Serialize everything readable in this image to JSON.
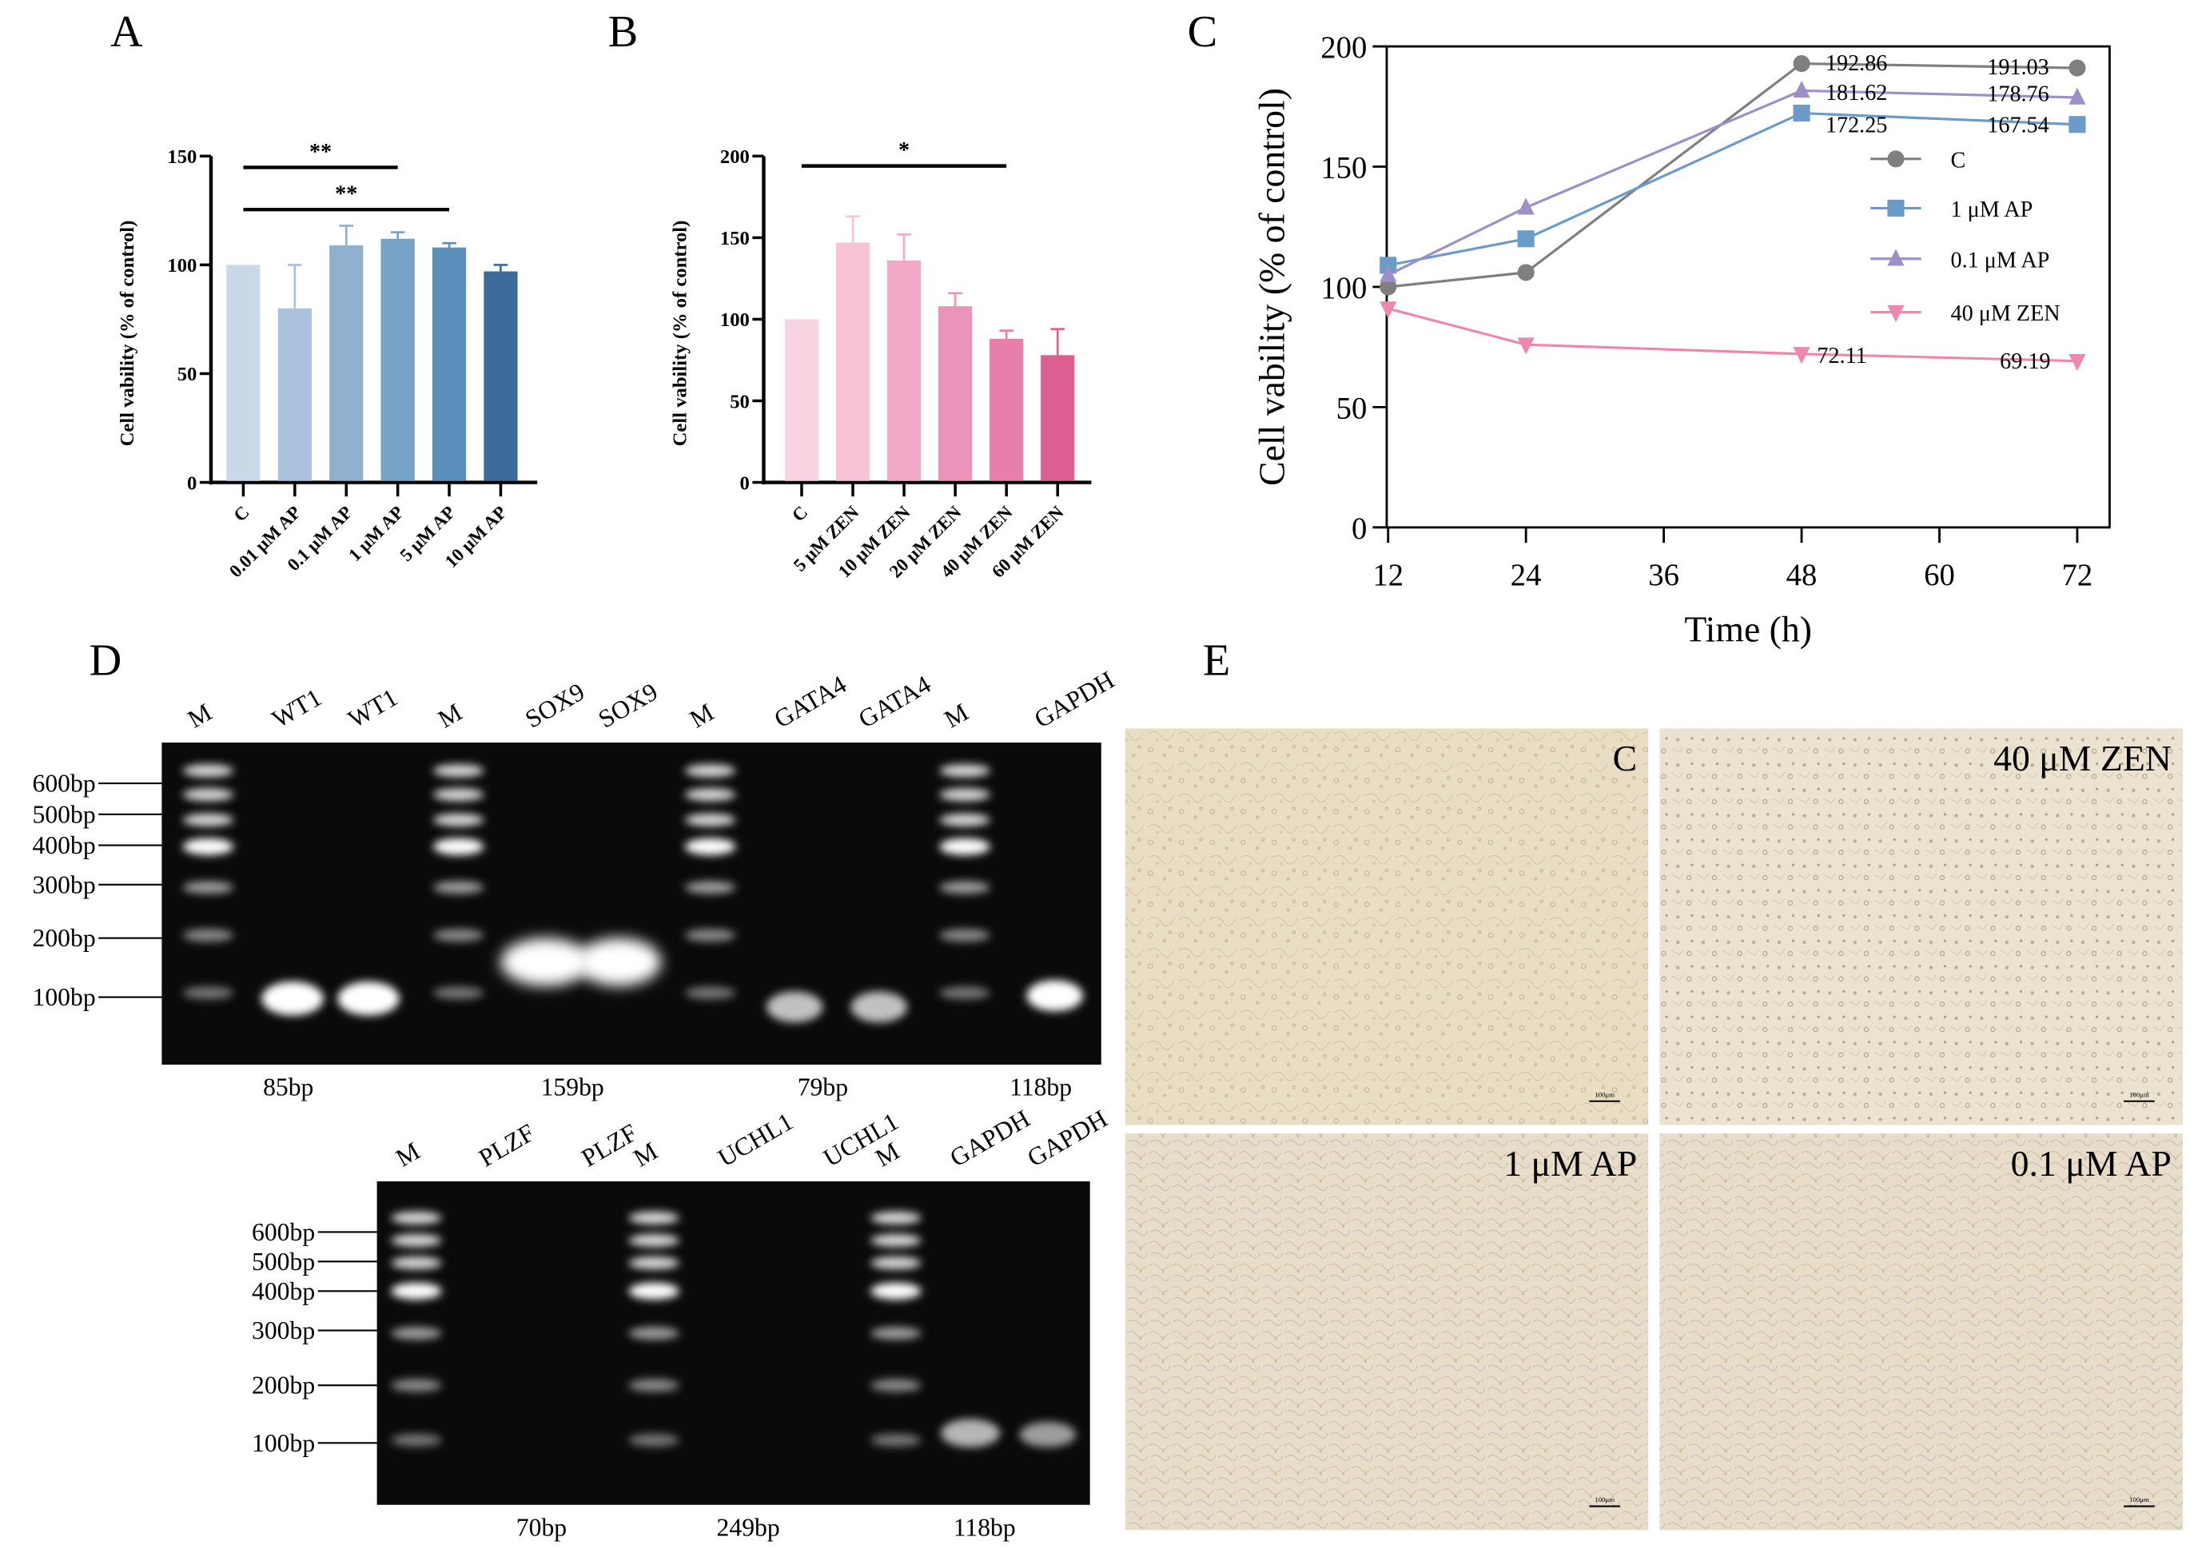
{
  "panel_labels": [
    "A",
    "B",
    "C",
    "D",
    "E"
  ],
  "chart_data": [
    {
      "type": "bar",
      "panel": "A",
      "categories": [
        "C",
        "0.01 μM AP",
        "0.1 μM AP",
        "1 μM AP",
        "5 μM AP",
        "10 μM AP"
      ],
      "values": [
        100,
        80,
        109,
        112,
        108,
        97
      ],
      "error_upper": [
        100,
        100,
        118,
        115,
        110,
        100
      ],
      "ylabel": "Cell vability (% of control)",
      "xlabel": "",
      "ylim": [
        0,
        150
      ],
      "yticks": [
        "0",
        "50",
        "100",
        "150"
      ],
      "colors": [
        "#c9d9e8",
        "#a9c1dc",
        "#8fb0cf",
        "#76a2c6",
        "#5b8fbb",
        "#3c6a9a"
      ],
      "significance": [
        {
          "from": 0,
          "to": 3,
          "label": "**"
        },
        {
          "from": 0,
          "to": 4,
          "label": "**"
        }
      ]
    },
    {
      "type": "bar",
      "panel": "B",
      "categories": [
        "C",
        "5 μM ZEN",
        "10 μM ZEN",
        "20 μM ZEN",
        "40 μM ZEN",
        "60 μM ZEN"
      ],
      "values": [
        100,
        147,
        136,
        108,
        88,
        78
      ],
      "error_upper": [
        100,
        163,
        152,
        116,
        93,
        94
      ],
      "ylabel": "Cell vability (% of control)",
      "xlabel": "",
      "ylim": [
        0,
        200
      ],
      "yticks": [
        "0",
        "50",
        "100",
        "150",
        "200"
      ],
      "colors": [
        "#f8d3e1",
        "#f6c3d7",
        "#f0a9c6",
        "#eb93b9",
        "#e87eaa",
        "#dc5f92"
      ],
      "significance": [
        {
          "from": 0,
          "to": 4,
          "label": "*"
        }
      ]
    },
    {
      "type": "line",
      "panel": "C",
      "x": [
        12,
        24,
        48,
        72
      ],
      "series": [
        {
          "name": "C",
          "values": [
            100,
            106,
            192.86,
            191.03
          ],
          "color": "#7f7f7f",
          "marker": "circle"
        },
        {
          "name": "1 μM AP",
          "values": [
            109,
            120,
            172.25,
            167.54
          ],
          "color": "#6a9bc9",
          "marker": "square"
        },
        {
          "name": "0.1 μM AP",
          "values": [
            105,
            133,
            181.62,
            178.76
          ],
          "color": "#9e8fc9",
          "marker": "triangle-up"
        },
        {
          "name": "40 μM ZEN",
          "values": [
            91,
            76,
            72.11,
            69.19
          ],
          "color": "#ee86ad",
          "marker": "triangle-down"
        }
      ],
      "point_labels": [
        "192.86",
        "191.03",
        "181.62",
        "178.76",
        "172.25",
        "167.54",
        "72.11",
        "69.19"
      ],
      "xlabel": "Time (h)",
      "ylabel": "Cell vability (% of control)",
      "xlim": [
        12,
        72
      ],
      "xticks": [
        "12",
        "24",
        "36",
        "48",
        "60",
        "72"
      ],
      "ylim": [
        0,
        200
      ],
      "yticks": [
        "0",
        "50",
        "100",
        "150",
        "200"
      ],
      "legend": "right"
    }
  ],
  "gels": [
    {
      "lanes": [
        "M",
        "WT1",
        "WT1",
        "M",
        "SOX9",
        "SOX9",
        "M",
        "GATA4",
        "GATA4",
        "M",
        "GAPDH"
      ],
      "marker_labels": [
        "600bp",
        "500bp",
        "400bp",
        "300bp",
        "200bp",
        "100bp"
      ],
      "product_sizes": [
        "85bp",
        "159bp",
        "79bp",
        "118bp"
      ]
    },
    {
      "lanes": [
        "M",
        "PLZF",
        "PLZF",
        "M",
        "UCHL1",
        "UCHL1",
        "M",
        "GAPDH",
        "GAPDH"
      ],
      "marker_labels": [
        "600bp",
        "500bp",
        "400bp",
        "300bp",
        "200bp",
        "100bp"
      ],
      "product_sizes": [
        "70bp",
        "249bp",
        "118bp"
      ]
    }
  ],
  "micrographs": [
    {
      "label": "C",
      "scale_bar": "100μm"
    },
    {
      "label": "40 μM ZEN",
      "scale_bar": "100μm"
    },
    {
      "label": "1 μM AP",
      "scale_bar": "100μm"
    },
    {
      "label": "0.1 μM AP",
      "scale_bar": "100μm"
    }
  ]
}
